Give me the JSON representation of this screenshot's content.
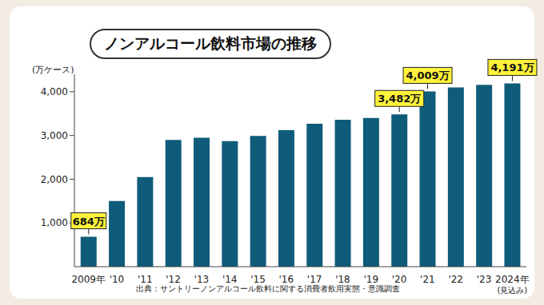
{
  "chart_data": {
    "type": "bar",
    "title": "ノンアルコール飲料市場の推移",
    "y_label": "(万ケース)",
    "source": "出典：サントリーノンアルコール飲料に関する消費者飲用実態・意識調査",
    "categories": [
      "2009年",
      "'10",
      "'11",
      "'12",
      "'13",
      "'14",
      "'15",
      "'16",
      "'17",
      "'18",
      "'19",
      "'20",
      "'21",
      "'22",
      "'23",
      "2024年\n(見込み)"
    ],
    "values": [
      684,
      1500,
      2050,
      2900,
      2950,
      2870,
      2990,
      3120,
      3270,
      3360,
      3400,
      3482,
      4009,
      4100,
      4160,
      4191
    ],
    "value_labels": [
      "684万",
      null,
      null,
      null,
      null,
      null,
      null,
      null,
      null,
      null,
      null,
      "3,482万",
      "4,009万",
      null,
      null,
      "4,191万"
    ],
    "data_labels": true,
    "color": "#0f5c7a",
    "ylim": [
      0,
      4400
    ],
    "yticks": [
      {
        "value": 1000,
        "label": "1,000"
      },
      {
        "value": 2000,
        "label": "2,000"
      },
      {
        "value": 3000,
        "label": "3,000"
      },
      {
        "value": 4000,
        "label": "4,000"
      }
    ],
    "grid": false
  }
}
